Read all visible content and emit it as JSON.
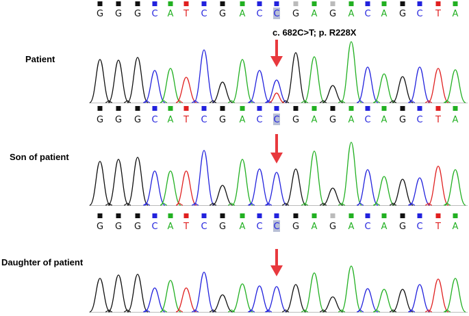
{
  "mutation_label": "c. 682C>T; p. R228X",
  "colors": {
    "A": "#22b022",
    "C": "#2222dd",
    "G": "#111111",
    "T": "#e02020",
    "N": "#bbbbbb",
    "arrow": "#e8383d",
    "highlight": "#b8bfd6"
  },
  "panels": [
    {
      "label": "Patient",
      "bases": [
        "G",
        "G",
        "G",
        "C",
        "A",
        "T",
        "C",
        "G",
        "A",
        "C",
        "C",
        "G",
        "A",
        "G",
        "A",
        "C",
        "A",
        "G",
        "C",
        "T",
        "A"
      ],
      "quality": [
        "G",
        "G",
        "G",
        "C",
        "A",
        "T",
        "C",
        "G",
        "A",
        "C",
        "C",
        "N",
        "A",
        "N",
        "A",
        "C",
        "A",
        "G",
        "C",
        "T",
        "A"
      ],
      "highlighted_index": 10
    },
    {
      "label": "Son of patient",
      "bases": [
        "G",
        "G",
        "G",
        "C",
        "A",
        "T",
        "C",
        "G",
        "A",
        "C",
        "C",
        "G",
        "A",
        "G",
        "A",
        "C",
        "A",
        "G",
        "C",
        "T",
        "A"
      ],
      "quality": [
        "G",
        "G",
        "G",
        "C",
        "A",
        "T",
        "C",
        "G",
        "A",
        "C",
        "C",
        "G",
        "A",
        "G",
        "A",
        "C",
        "A",
        "G",
        "C",
        "T",
        "A"
      ],
      "highlighted_index": 10
    },
    {
      "label": "Daughter of patient",
      "bases": [
        "G",
        "G",
        "G",
        "C",
        "A",
        "T",
        "C",
        "G",
        "A",
        "C",
        "C",
        "G",
        "A",
        "G",
        "A",
        "C",
        "A",
        "G",
        "C",
        "T",
        "A"
      ],
      "quality": [
        "G",
        "G",
        "G",
        "C",
        "A",
        "T",
        "C",
        "G",
        "A",
        "C",
        "C",
        "G",
        "A",
        "N",
        "A",
        "C",
        "A",
        "G",
        "C",
        "T",
        "A"
      ],
      "highlighted_index": 10
    }
  ]
}
